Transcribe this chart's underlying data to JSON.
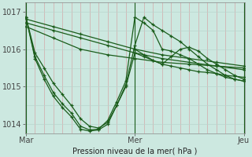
{
  "bg_color": "#cce8e0",
  "line_color": "#1a5c1a",
  "grid_color_v": "#d4a8a8",
  "grid_color_h": "#b8d4cc",
  "xlabel": "Pression niveau de la mer( hPa )",
  "xtick_labels": [
    "Mar",
    "Mer",
    "Jeu"
  ],
  "xtick_positions": [
    0.0,
    1.0,
    2.0
  ],
  "ylim": [
    1013.75,
    1017.25
  ],
  "yticks": [
    1014,
    1015,
    1016,
    1017
  ],
  "figsize": [
    3.2,
    2.0
  ],
  "dpi": 100,
  "num_v_gridlines": 24,
  "h_gridlines": [
    1014,
    1014.5,
    1015,
    1015.5,
    1016,
    1016.5,
    1017
  ],
  "series": [
    {
      "x": [
        0.0,
        0.25,
        0.5,
        0.75,
        1.0,
        1.25,
        1.5,
        1.75,
        2.0
      ],
      "y": [
        1016.8,
        1016.6,
        1016.4,
        1016.2,
        1016.0,
        1015.85,
        1015.75,
        1015.65,
        1015.55
      ]
    },
    {
      "x": [
        0.0,
        0.25,
        0.5,
        0.75,
        1.0,
        1.25,
        1.5,
        1.75,
        2.0
      ],
      "y": [
        1016.7,
        1016.5,
        1016.3,
        1016.1,
        1015.9,
        1015.75,
        1015.65,
        1015.55,
        1015.45
      ]
    },
    {
      "x": [
        0.0,
        0.25,
        0.5,
        0.75,
        1.0,
        1.25,
        1.5,
        1.75,
        2.0
      ],
      "y": [
        1016.6,
        1016.3,
        1016.0,
        1015.85,
        1015.75,
        1015.65,
        1015.6,
        1015.55,
        1015.5
      ]
    },
    {
      "x": [
        0.0,
        0.083,
        0.167,
        0.25,
        0.333,
        0.417,
        0.5,
        0.583,
        0.667,
        0.75,
        0.833,
        0.917,
        1.0,
        1.083,
        1.167,
        1.25,
        1.333,
        1.417,
        1.5,
        1.583,
        1.667,
        1.75,
        1.833,
        1.917,
        2.0
      ],
      "y": [
        1016.85,
        1015.9,
        1015.5,
        1015.1,
        1014.8,
        1014.5,
        1014.15,
        1013.95,
        1013.9,
        1014.05,
        1014.5,
        1015.0,
        1015.9,
        1015.8,
        1015.7,
        1015.6,
        1015.55,
        1015.5,
        1015.45,
        1015.4,
        1015.38,
        1015.35,
        1015.3,
        1015.28,
        1015.25
      ]
    },
    {
      "x": [
        0.0,
        0.083,
        0.167,
        0.25,
        0.333,
        0.417,
        0.5,
        0.583,
        0.667,
        0.75,
        0.833,
        0.917,
        1.0,
        1.083,
        1.167,
        1.25,
        1.333,
        1.417,
        1.5,
        1.583,
        1.667,
        1.75,
        1.833,
        1.917,
        2.0
      ],
      "y": [
        1016.85,
        1015.8,
        1015.3,
        1014.85,
        1014.55,
        1014.3,
        1013.95,
        1013.85,
        1013.87,
        1014.1,
        1014.6,
        1015.15,
        1016.85,
        1016.7,
        1016.5,
        1016.0,
        1015.95,
        1015.85,
        1015.75,
        1015.6,
        1015.45,
        1015.35,
        1015.25,
        1015.2,
        1015.15
      ]
    },
    {
      "x": [
        0.0,
        0.083,
        0.167,
        0.25,
        0.333,
        0.417,
        0.5,
        0.583,
        0.667,
        0.75,
        0.833,
        0.917,
        1.0,
        1.083,
        1.167,
        1.25,
        1.333,
        1.417,
        1.5,
        1.583,
        1.667,
        1.75,
        1.833,
        1.917,
        2.0
      ],
      "y": [
        1016.85,
        1015.75,
        1015.2,
        1014.75,
        1014.45,
        1014.2,
        1013.87,
        1013.82,
        1013.85,
        1014.0,
        1014.5,
        1015.05,
        1016.1,
        1016.85,
        1016.65,
        1016.5,
        1016.35,
        1016.2,
        1016.0,
        1015.8,
        1015.6,
        1015.45,
        1015.3,
        1015.2,
        1015.15
      ]
    },
    {
      "x": [
        1.0,
        1.083,
        1.167,
        1.25,
        1.333,
        1.417,
        1.5,
        1.583,
        1.667,
        1.75,
        1.833,
        1.917,
        2.0
      ],
      "y": [
        1016.0,
        1015.85,
        1015.7,
        1015.6,
        1015.8,
        1016.0,
        1016.05,
        1015.95,
        1015.75,
        1015.6,
        1015.45,
        1015.3,
        1015.2
      ]
    }
  ]
}
